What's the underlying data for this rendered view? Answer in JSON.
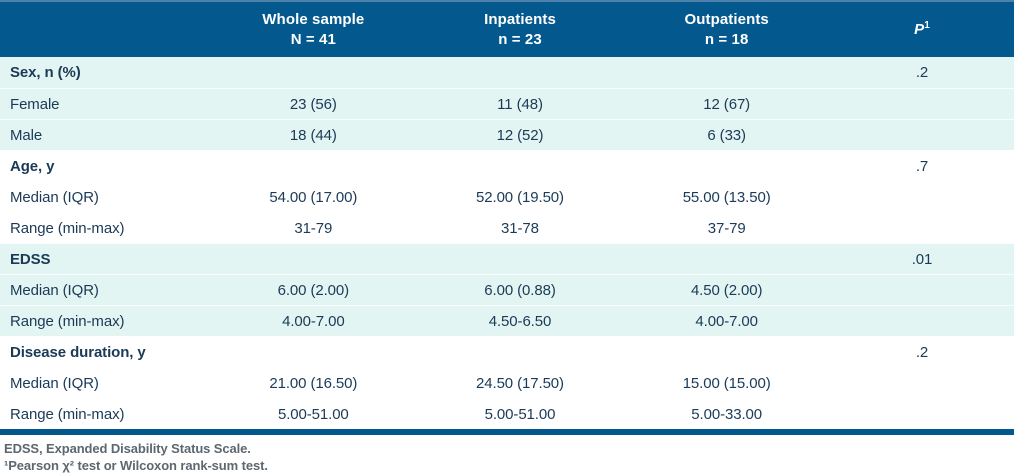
{
  "colors": {
    "header_blue": "#03598e",
    "header_top_edge": "#4e81a9",
    "band_cyan": "#e2f5f2",
    "body_text_navy": "#1b3a57",
    "footnote_gray": "#5c6770"
  },
  "table": {
    "header": {
      "col_label": "",
      "whole": {
        "line1": "Whole sample",
        "line2": "N = 41"
      },
      "inpatients": {
        "line1": "Inpatients",
        "line2": "n = 23"
      },
      "outpatients": {
        "line1": "Outpatients",
        "line2": "n = 18"
      },
      "p": {
        "label": "P",
        "sup": "1"
      }
    },
    "groups": [
      {
        "label": "Sex, n (%)",
        "p": ".2",
        "rows": [
          {
            "label": "Female",
            "whole": "23 (56)",
            "inpatients": "11 (48)",
            "outpatients": "12 (67)"
          },
          {
            "label": "Male",
            "whole": "18 (44)",
            "inpatients": "12 (52)",
            "outpatients": "6 (33)"
          }
        ]
      },
      {
        "label": "Age, y",
        "p": ".7",
        "rows": [
          {
            "label": "Median (IQR)",
            "whole": "54.00 (17.00)",
            "inpatients": "52.00 (19.50)",
            "outpatients": "55.00 (13.50)"
          },
          {
            "label": "Range (min-max)",
            "whole": "31-79",
            "inpatients": "31-78",
            "outpatients": "37-79"
          }
        ]
      },
      {
        "label": "EDSS",
        "p": ".01",
        "rows": [
          {
            "label": "Median (IQR)",
            "whole": "6.00 (2.00)",
            "inpatients": "6.00 (0.88)",
            "outpatients": "4.50 (2.00)"
          },
          {
            "label": "Range (min-max)",
            "whole": "4.00-7.00",
            "inpatients": "4.50-6.50",
            "outpatients": "4.00-7.00"
          }
        ]
      },
      {
        "label": "Disease duration, y",
        "p": ".2",
        "rows": [
          {
            "label": "Median (IQR)",
            "whole": "21.00 (16.50)",
            "inpatients": "24.50 (17.50)",
            "outpatients": "15.00 (15.00)"
          },
          {
            "label": "Range (min-max)",
            "whole": "5.00-51.00",
            "inpatients": "5.00-51.00",
            "outpatients": "5.00-33.00"
          }
        ]
      }
    ],
    "footnotes": [
      "EDSS, Expanded Disability Status Scale.",
      "¹Pearson χ² test or Wilcoxon rank-sum test."
    ]
  }
}
